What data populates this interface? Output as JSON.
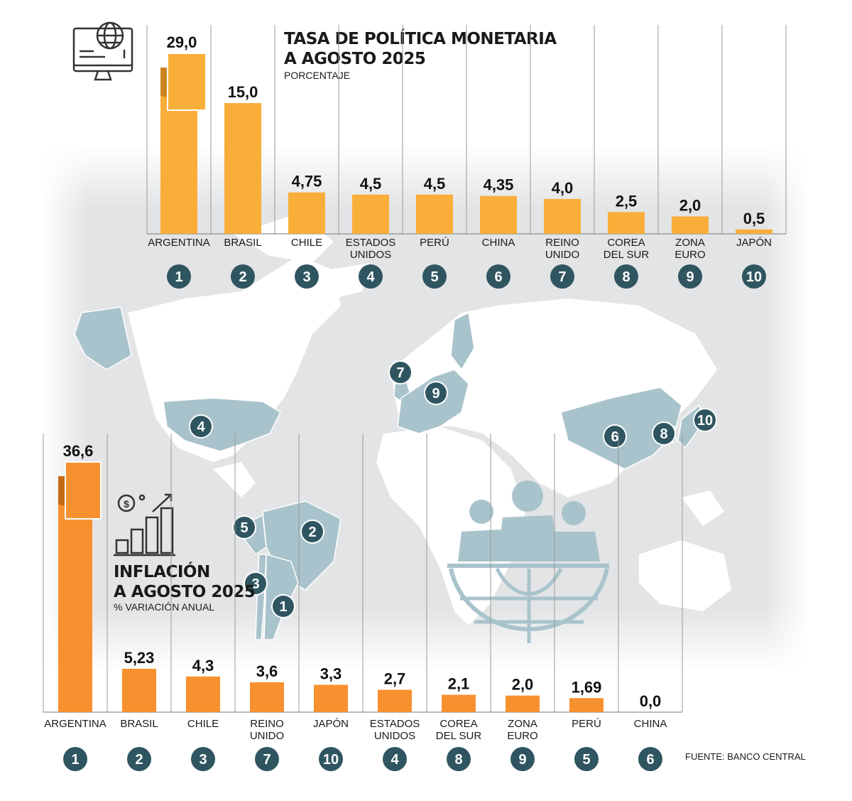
{
  "colors": {
    "policy_bar": "#F9AE3A",
    "inflation_bar": "#F7902E",
    "map_land": "#ffffff",
    "map_highlight": "#A9C3CC",
    "badge": "#2F5560",
    "gray_band": "#E2E4E5"
  },
  "policy_title_line1": "TASA DE POLÍTICA MONETARIA",
  "policy_title_line2": "A AGOSTO 2025",
  "policy_subtitle": "PORCENTAJE",
  "inflation_title_line1": "INFLACIÓN",
  "inflation_title_line2": "A AGOSTO 2025",
  "inflation_subtitle": "% VARIACIÓN ANUAL",
  "source": "FUENTE: BANCO CENTRAL",
  "icons": [
    "computer-globe-icon",
    "money-growth-icon",
    "business-people-globe-icon"
  ],
  "chart_data": [
    {
      "type": "bar",
      "title": "TASA DE POLÍTICA MONETARIA A AGOSTO 2025",
      "subtitle": "PORCENTAJE",
      "categories": [
        [
          "ARGENTINA"
        ],
        [
          "BRASIL"
        ],
        [
          "CHILE"
        ],
        [
          "ESTADOS",
          "UNIDOS"
        ],
        [
          "PERÚ"
        ],
        [
          "CHINA"
        ],
        [
          "REINO",
          "UNIDO"
        ],
        [
          "COREA",
          "DEL SUR"
        ],
        [
          "ZONA",
          "EURO"
        ],
        [
          "JAPÓN"
        ]
      ],
      "values": [
        29.0,
        15.0,
        4.75,
        4.5,
        4.5,
        4.35,
        4.0,
        2.5,
        2.0,
        0.5
      ],
      "value_labels": [
        "29,0",
        "15,0",
        "4,75",
        "4,5",
        "4,5",
        "4,35",
        "4,0",
        "2,5",
        "2,0",
        "0,5"
      ],
      "ranks": [
        "1",
        "2",
        "3",
        "4",
        "5",
        "6",
        "7",
        "8",
        "9",
        "10"
      ],
      "ylim": [
        0,
        15
      ],
      "broken_axis": true,
      "xlabel": "",
      "ylabel": ""
    },
    {
      "type": "bar",
      "title": "INFLACIÓN A AGOSTO 2025",
      "subtitle": "% VARIACIÓN ANUAL",
      "categories": [
        [
          "ARGENTINA"
        ],
        [
          "BRASIL"
        ],
        [
          "CHILE"
        ],
        [
          "REINO",
          "UNIDO"
        ],
        [
          "JAPÓN"
        ],
        [
          "ESTADOS",
          "UNIDOS"
        ],
        [
          "COREA",
          "DEL SUR"
        ],
        [
          "ZONA",
          "EURO"
        ],
        [
          "PERÚ"
        ],
        [
          "CHINA"
        ]
      ],
      "values": [
        36.6,
        5.23,
        4.3,
        3.6,
        3.3,
        2.7,
        2.1,
        2.0,
        1.69,
        0.0
      ],
      "value_labels": [
        "36,6",
        "5,23",
        "4,3",
        "3,6",
        "3,3",
        "2,7",
        "2,1",
        "2,0",
        "1,69",
        "0,0"
      ],
      "ranks": [
        "1",
        "2",
        "3",
        "7",
        "10",
        "4",
        "8",
        "9",
        "5",
        "6"
      ],
      "ylim": [
        0,
        5.23
      ],
      "broken_axis": true,
      "xlabel": "",
      "ylabel": ""
    }
  ],
  "map_markers": [
    "1",
    "2",
    "3",
    "4",
    "5",
    "6",
    "7",
    "8",
    "9",
    "10"
  ]
}
